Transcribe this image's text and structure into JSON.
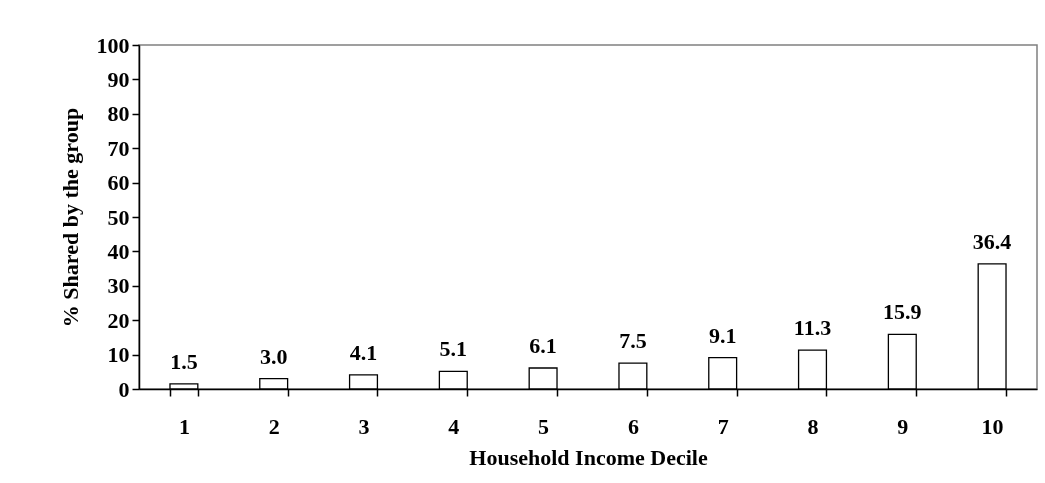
{
  "chart_data": {
    "type": "bar",
    "xlabel": "Household Income Decile",
    "ylabel": "%  Shared by the group",
    "categories": [
      "1",
      "2",
      "3",
      "4",
      "5",
      "6",
      "7",
      "8",
      "9",
      "10"
    ],
    "values": [
      1.5,
      3.0,
      4.1,
      5.1,
      6.1,
      7.5,
      9.1,
      11.3,
      15.9,
      36.4
    ],
    "value_labels": [
      "1.5",
      "3.0",
      "4.1",
      "5.1",
      "6.1",
      "7.5",
      "9.1",
      "11.3",
      "15.9",
      "36.4"
    ],
    "color": "#ffffff",
    "ylim": [
      0,
      100
    ],
    "yticks": [
      0,
      10,
      20,
      30,
      40,
      50,
      60,
      70,
      80,
      90,
      100
    ],
    "grid": false
  }
}
